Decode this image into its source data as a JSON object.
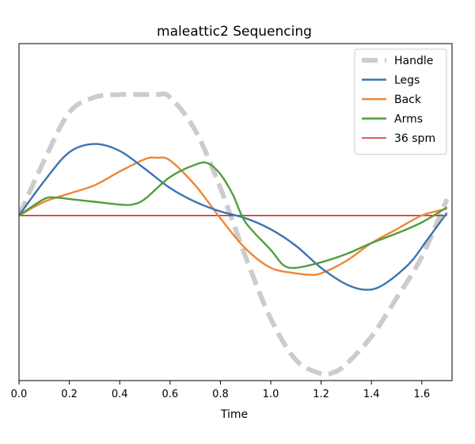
{
  "chart_data": {
    "type": "line",
    "title": "maleattic2 Sequencing",
    "xlabel": "Time",
    "ylabel": "",
    "xlim": [
      0.0,
      1.72
    ],
    "ylim": [
      -1.2,
      1.25
    ],
    "xticks": [
      0.0,
      0.2,
      0.4,
      0.6,
      0.8,
      1.0,
      1.2,
      1.4,
      1.6
    ],
    "xtick_labels": [
      "0.0",
      "0.2",
      "0.4",
      "0.6",
      "0.8",
      "1.0",
      "1.2",
      "1.4",
      "1.6"
    ],
    "grid": false,
    "legend": "top-right",
    "series": [
      {
        "name": "Handle",
        "color": "#cccccc",
        "style": "dashed",
        "x": [
          0.0,
          0.1,
          0.2,
          0.3,
          0.4,
          0.5,
          0.55,
          0.6,
          0.7,
          0.8,
          0.9,
          1.0,
          1.1,
          1.2,
          1.25,
          1.3,
          1.4,
          1.5,
          1.6,
          1.7
        ],
        "y": [
          0.0,
          0.4,
          0.75,
          0.86,
          0.88,
          0.88,
          0.88,
          0.86,
          0.62,
          0.2,
          -0.3,
          -0.75,
          -1.05,
          -1.15,
          -1.14,
          -1.08,
          -0.88,
          -0.6,
          -0.3,
          0.12
        ]
      },
      {
        "name": "Legs",
        "color": "#3a75b0",
        "style": "solid",
        "x": [
          0.0,
          0.1,
          0.2,
          0.3,
          0.4,
          0.5,
          0.6,
          0.7,
          0.8,
          0.9,
          1.0,
          1.1,
          1.2,
          1.3,
          1.38,
          1.45,
          1.55,
          1.62,
          1.7
        ],
        "y": [
          0.0,
          0.25,
          0.46,
          0.52,
          0.47,
          0.34,
          0.2,
          0.1,
          0.03,
          -0.02,
          -0.1,
          -0.22,
          -0.38,
          -0.5,
          -0.54,
          -0.5,
          -0.35,
          -0.18,
          0.02
        ]
      },
      {
        "name": "Back",
        "color": "#ef8636",
        "style": "solid",
        "x": [
          0.0,
          0.1,
          0.2,
          0.3,
          0.4,
          0.5,
          0.55,
          0.6,
          0.7,
          0.8,
          0.9,
          1.0,
          1.1,
          1.15,
          1.2,
          1.3,
          1.4,
          1.5,
          1.6,
          1.7
        ],
        "y": [
          0.0,
          0.1,
          0.16,
          0.22,
          0.32,
          0.41,
          0.42,
          0.4,
          0.22,
          -0.02,
          -0.24,
          -0.38,
          -0.42,
          -0.43,
          -0.42,
          -0.33,
          -0.2,
          -0.1,
          0.0,
          0.05
        ]
      },
      {
        "name": "Arms",
        "color": "#519e3e",
        "style": "solid",
        "x": [
          0.0,
          0.1,
          0.15,
          0.2,
          0.3,
          0.4,
          0.45,
          0.5,
          0.6,
          0.7,
          0.75,
          0.8,
          0.85,
          0.9,
          1.0,
          1.05,
          1.1,
          1.2,
          1.3,
          1.4,
          1.5,
          1.6,
          1.7
        ],
        "y": [
          0.0,
          0.12,
          0.13,
          0.12,
          0.1,
          0.08,
          0.08,
          0.12,
          0.28,
          0.37,
          0.38,
          0.3,
          0.15,
          -0.05,
          -0.25,
          -0.36,
          -0.38,
          -0.34,
          -0.28,
          -0.2,
          -0.13,
          -0.05,
          0.06
        ]
      },
      {
        "name": "36 spm",
        "color": "#d22a2a",
        "style": "solid",
        "x": [
          0.0,
          1.7
        ],
        "y": [
          0.0,
          0.0
        ]
      }
    ]
  }
}
